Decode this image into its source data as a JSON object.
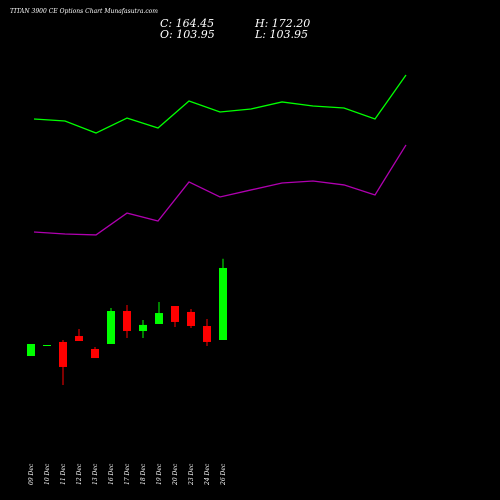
{
  "chart_data": {
    "type": "candlestick",
    "title": "TITAN 3900 CE Options Chart Munafasutra.com",
    "header": {
      "close": "C: 164.45",
      "high": "H: 172.20",
      "open": "O: 103.95",
      "low": "L: 103.95"
    },
    "categories": [
      "09 Dec",
      "10 Dec",
      "11 Dec",
      "12 Dec",
      "13 Dec",
      "16 Dec",
      "17 Dec",
      "18 Dec",
      "19 Dec",
      "20 Dec",
      "23 Dec",
      "24 Dec",
      "26 Dec"
    ],
    "open": [
      90.5,
      99.75,
      102.3,
      107.3,
      96.4,
      100.6,
      128.3,
      111.5,
      117.4,
      132.5,
      127.5,
      115.7,
      103.95
    ],
    "high": [
      100.6,
      99.75,
      103.95,
      113.2,
      98.1,
      130.8,
      133.4,
      120.8,
      135.9,
      132.5,
      130.0,
      121.6,
      172.2
    ],
    "low": [
      90.5,
      99.75,
      66.2,
      103.1,
      88.8,
      100.6,
      105.6,
      105.6,
      117.4,
      114.9,
      114.0,
      98.9,
      103.95
    ],
    "close": [
      100.6,
      99.75,
      81.3,
      103.1,
      88.8,
      128.3,
      111.5,
      116.6,
      126.6,
      119.1,
      115.7,
      102.3,
      164.45
    ],
    "up_color": "#00ff00",
    "down_color": "#ff0000",
    "series": [
      {
        "type": "line",
        "color": "#00ff00",
        "values": [
          289.6,
          287.9,
          277.8,
          290.4,
          282.0,
          304.7,
          295.5,
          298.0,
          303.9,
          300.5,
          298.8,
          289.6,
          326.6
        ]
      },
      {
        "type": "line",
        "color": "#b000b0",
        "values": [
          194.7,
          193.0,
          192.2,
          210.6,
          203.9,
          236.7,
          224.1,
          230.0,
          235.8,
          237.5,
          234.2,
          225.8,
          267.8
        ]
      }
    ],
    "ylim": [
      -30.45,
      389.55
    ]
  }
}
